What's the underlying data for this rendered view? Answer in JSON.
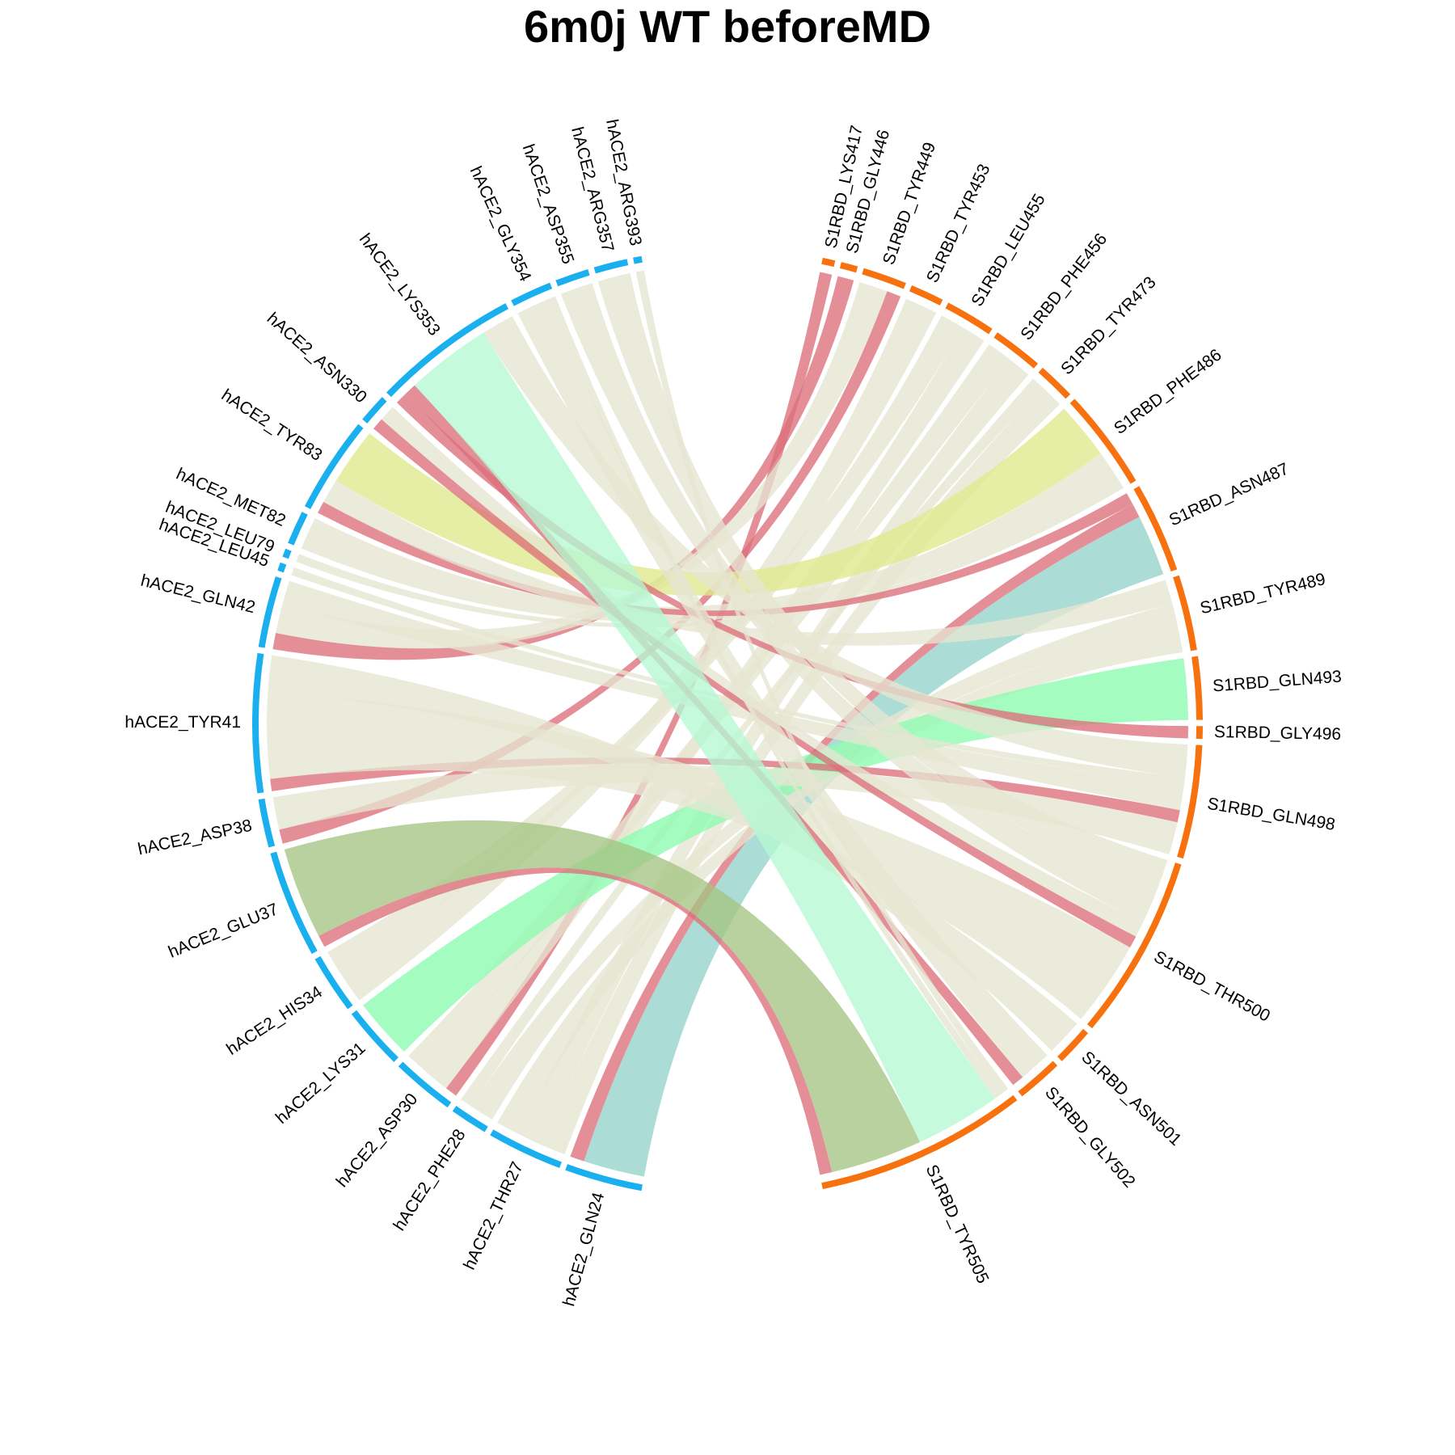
{
  "title": "6m0j WT beforeMD",
  "colors": {
    "hACE2": "#1ab0ef",
    "S1RBD": "#f7720f",
    "default_link": "#e5e6d2",
    "hydrogen_bond_link": "#dc6f7b"
  },
  "chart_data": {
    "type": "chord",
    "title": "6m0j WT beforeMD",
    "groups": [
      {
        "name": "hACE2",
        "color": "#1ab0ef"
      },
      {
        "name": "S1RBD",
        "color": "#f7720f"
      }
    ],
    "sectors": [
      {
        "name": "hACE2_GLN24",
        "group": "hACE2"
      },
      {
        "name": "hACE2_THR27",
        "group": "hACE2"
      },
      {
        "name": "hACE2_PHE28",
        "group": "hACE2"
      },
      {
        "name": "hACE2_ASP30",
        "group": "hACE2"
      },
      {
        "name": "hACE2_LYS31",
        "group": "hACE2"
      },
      {
        "name": "hACE2_HIS34",
        "group": "hACE2"
      },
      {
        "name": "hACE2_GLU37",
        "group": "hACE2"
      },
      {
        "name": "hACE2_ASP38",
        "group": "hACE2"
      },
      {
        "name": "hACE2_TYR41",
        "group": "hACE2"
      },
      {
        "name": "hACE2_GLN42",
        "group": "hACE2"
      },
      {
        "name": "hACE2_LEU45",
        "group": "hACE2"
      },
      {
        "name": "hACE2_LEU79",
        "group": "hACE2"
      },
      {
        "name": "hACE2_MET82",
        "group": "hACE2"
      },
      {
        "name": "hACE2_TYR83",
        "group": "hACE2"
      },
      {
        "name": "hACE2_ASN330",
        "group": "hACE2"
      },
      {
        "name": "hACE2_LYS353",
        "group": "hACE2"
      },
      {
        "name": "hACE2_GLY354",
        "group": "hACE2"
      },
      {
        "name": "hACE2_ASP355",
        "group": "hACE2"
      },
      {
        "name": "hACE2_ARG357",
        "group": "hACE2"
      },
      {
        "name": "hACE2_ARG393",
        "group": "hACE2"
      },
      {
        "name": "S1RBD_LYS417",
        "group": "S1RBD"
      },
      {
        "name": "S1RBD_GLY446",
        "group": "S1RBD"
      },
      {
        "name": "S1RBD_TYR449",
        "group": "S1RBD"
      },
      {
        "name": "S1RBD_TYR453",
        "group": "S1RBD"
      },
      {
        "name": "S1RBD_LEU455",
        "group": "S1RBD"
      },
      {
        "name": "S1RBD_PHE456",
        "group": "S1RBD"
      },
      {
        "name": "S1RBD_TYR473",
        "group": "S1RBD"
      },
      {
        "name": "S1RBD_PHE486",
        "group": "S1RBD"
      },
      {
        "name": "S1RBD_ASN487",
        "group": "S1RBD"
      },
      {
        "name": "S1RBD_TYR489",
        "group": "S1RBD"
      },
      {
        "name": "S1RBD_GLN493",
        "group": "S1RBD"
      },
      {
        "name": "S1RBD_GLY496",
        "group": "S1RBD"
      },
      {
        "name": "S1RBD_GLN498",
        "group": "S1RBD"
      },
      {
        "name": "S1RBD_THR500",
        "group": "S1RBD"
      },
      {
        "name": "S1RBD_ASN501",
        "group": "S1RBD"
      },
      {
        "name": "S1RBD_GLY502",
        "group": "S1RBD"
      },
      {
        "name": "S1RBD_TYR505",
        "group": "S1RBD"
      }
    ],
    "links": [
      {
        "source": "hACE2_GLN24",
        "target": "S1RBD_ASN487",
        "value": 3,
        "color": "#94d3cb"
      },
      {
        "source": "hACE2_GLN24",
        "target": "S1RBD_ASN487",
        "value": 0.7,
        "color": "#dc6f7b"
      },
      {
        "source": "hACE2_THR27",
        "target": "S1RBD_TYR473",
        "value": 1.2,
        "color": "#e5e6d2"
      },
      {
        "source": "hACE2_THR27",
        "target": "S1RBD_PHE456",
        "value": 1.2,
        "color": "#e5e6d2"
      },
      {
        "source": "hACE2_THR27",
        "target": "S1RBD_TYR489",
        "value": 1.2,
        "color": "#e5e6d2"
      },
      {
        "source": "hACE2_PHE28",
        "target": "S1RBD_TYR489",
        "value": 1.2,
        "color": "#e5e6d2"
      },
      {
        "source": "hACE2_PHE28",
        "target": "S1RBD_TYR473",
        "value": 0.6,
        "color": "#e5e6d2"
      },
      {
        "source": "hACE2_ASP30",
        "target": "S1RBD_LYS417",
        "value": 0.6,
        "color": "#dc6f7b"
      },
      {
        "source": "hACE2_ASP30",
        "target": "S1RBD_LEU455",
        "value": 1.2,
        "color": "#e5e6d2"
      },
      {
        "source": "hACE2_ASP30",
        "target": "S1RBD_PHE456",
        "value": 1.2,
        "color": "#e5e6d2"
      },
      {
        "source": "hACE2_LYS31",
        "target": "S1RBD_GLN493",
        "value": 3,
        "color": "#8cfbb0"
      },
      {
        "source": "hACE2_HIS34",
        "target": "S1RBD_TYR453",
        "value": 1.6,
        "color": "#e5e6d2"
      },
      {
        "source": "hACE2_HIS34",
        "target": "S1RBD_LEU455",
        "value": 1.2,
        "color": "#e5e6d2"
      },
      {
        "source": "hACE2_GLU37",
        "target": "S1RBD_TYR505",
        "value": 0.6,
        "color": "#dc6f7b"
      },
      {
        "source": "hACE2_GLU37",
        "target": "S1RBD_TYR505",
        "value": 4.5,
        "color": "#a5c483"
      },
      {
        "source": "hACE2_ASP38",
        "target": "S1RBD_TYR449",
        "value": 0.7,
        "color": "#dc6f7b"
      },
      {
        "source": "hACE2_ASP38",
        "target": "S1RBD_GLN498",
        "value": 1.6,
        "color": "#e5e6d2"
      },
      {
        "source": "hACE2_TYR41",
        "target": "S1RBD_GLN498",
        "value": 0.6,
        "color": "#dc6f7b"
      },
      {
        "source": "hACE2_TYR41",
        "target": "S1RBD_THR500",
        "value": 4.2,
        "color": "#e5e6d2"
      },
      {
        "source": "hACE2_TYR41",
        "target": "S1RBD_ASN501",
        "value": 1.8,
        "color": "#e5e6d2"
      },
      {
        "source": "hACE2_GLN42",
        "target": "S1RBD_GLY446",
        "value": 0.8,
        "color": "#dc6f7b"
      },
      {
        "source": "hACE2_GLN42",
        "target": "S1RBD_TYR449",
        "value": 1.4,
        "color": "#e5e6d2"
      },
      {
        "source": "hACE2_GLN42",
        "target": "S1RBD_GLN498",
        "value": 1.2,
        "color": "#e5e6d2"
      },
      {
        "source": "hACE2_LEU45",
        "target": "S1RBD_GLN498",
        "value": 0.4,
        "color": "#e5e6d2"
      },
      {
        "source": "hACE2_LEU79",
        "target": "S1RBD_PHE486",
        "value": 0.4,
        "color": "#e5e6d2"
      },
      {
        "source": "hACE2_MET82",
        "target": "S1RBD_PHE486",
        "value": 1.6,
        "color": "#e5e6d2"
      },
      {
        "source": "hACE2_TYR83",
        "target": "S1RBD_ASN487",
        "value": 0.6,
        "color": "#dc6f7b"
      },
      {
        "source": "hACE2_TYR83",
        "target": "S1RBD_TYR489",
        "value": 1.2,
        "color": "#e5e6d2"
      },
      {
        "source": "hACE2_TYR83",
        "target": "S1RBD_PHE486",
        "value": 2.8,
        "color": "#dfe98c"
      },
      {
        "source": "hACE2_ASN330",
        "target": "S1RBD_THR500",
        "value": 0.6,
        "color": "#dc6f7b"
      },
      {
        "source": "hACE2_ASN330",
        "target": "S1RBD_THR500",
        "value": 0.8,
        "color": "#e5e6d2"
      },
      {
        "source": "hACE2_LYS353",
        "target": "S1RBD_GLY496",
        "value": 0.6,
        "color": "#dc6f7b"
      },
      {
        "source": "hACE2_LYS353",
        "target": "S1RBD_GLY502",
        "value": 0.6,
        "color": "#dc6f7b"
      },
      {
        "source": "hACE2_LYS353",
        "target": "S1RBD_TYR505",
        "value": 4.2,
        "color": "#b5f9d3"
      },
      {
        "source": "hACE2_LYS353",
        "target": "S1RBD_GLN498",
        "value": 1.6,
        "color": "#e5e6d2"
      },
      {
        "source": "hACE2_GLY354",
        "target": "S1RBD_GLY502",
        "value": 1.6,
        "color": "#e5e6d2"
      },
      {
        "source": "hACE2_GLY354",
        "target": "S1RBD_TYR505",
        "value": 0.4,
        "color": "#e5e6d2"
      },
      {
        "source": "hACE2_ASP355",
        "target": "S1RBD_THR500",
        "value": 1.6,
        "color": "#e5e6d2"
      },
      {
        "source": "hACE2_ARG357",
        "target": "S1RBD_THR500",
        "value": 1.6,
        "color": "#e5e6d2"
      },
      {
        "source": "hACE2_ARG393",
        "target": "S1RBD_TYR505",
        "value": 0.4,
        "color": "#e5e6d2"
      }
    ]
  }
}
